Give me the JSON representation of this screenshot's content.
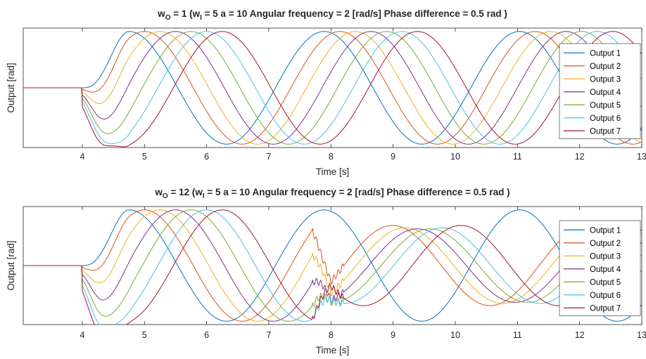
{
  "chart_data": [
    {
      "type": "line",
      "title_parts": [
        "w",
        "O",
        " = 1   (w",
        "I",
        " = 5   a = 10   Angular frequency = 2 [rad/s]   Phase difference = 0.5 rad )"
      ],
      "xlabel": "Time [s]",
      "ylabel": "Output [rad]",
      "xlim": [
        3.05,
        13
      ],
      "xticks": [
        4,
        5,
        6,
        7,
        8,
        9,
        10,
        11,
        12,
        13
      ],
      "ylim": [
        -1.06,
        1.06
      ],
      "grid": false,
      "legend_position": "right",
      "peak_values": {
        "Output 1": [
          0.97,
          1.0,
          1.0
        ],
        "Output 7": [
          0.97,
          1.0,
          1.0
        ]
      },
      "dip_values": {
        "Output 1": [
          -1.0,
          -1.0
        ],
        "Output 7": [
          -0.75,
          -1.0,
          -1.0
        ]
      },
      "series": [
        {
          "name": "Output 1",
          "color": "#0072bd",
          "phase_rad": 0.0,
          "dip": 0.0
        },
        {
          "name": "Output 2",
          "color": "#d95319",
          "phase_rad": 0.5,
          "dip": 0.07
        },
        {
          "name": "Output 3",
          "color": "#edb120",
          "phase_rad": 1.0,
          "dip": 0.17
        },
        {
          "name": "Output 4",
          "color": "#7e2f8e",
          "phase_rad": 1.5,
          "dip": 0.29
        },
        {
          "name": "Output 5",
          "color": "#77ac30",
          "phase_rad": 2.0,
          "dip": 0.42
        },
        {
          "name": "Output 6",
          "color": "#4dbeee",
          "phase_rad": 2.5,
          "dip": 0.57
        },
        {
          "name": "Output 7",
          "color": "#a2142f",
          "phase_rad": 3.0,
          "dip": 0.75
        }
      ]
    },
    {
      "type": "line",
      "title_parts": [
        "w",
        "O",
        " = 12   (w",
        "I",
        " = 5   a = 10   Angular frequency = 2 [rad/s]   Phase difference = 0.5 rad )"
      ],
      "xlabel": "Time [s]",
      "ylabel": "Output [rad]",
      "xlim": [
        3.05,
        13
      ],
      "xticks": [
        4,
        5,
        6,
        7,
        8,
        9,
        10,
        11,
        12,
        13
      ],
      "ylim": [
        -1.06,
        1.06
      ],
      "grid": false,
      "legend_position": "right",
      "series": [
        {
          "name": "Output 1",
          "color": "#0072bd",
          "phase_rad": 0.0,
          "dip": 0.0
        },
        {
          "name": "Output 2",
          "color": "#d95319",
          "phase_rad": 0.5,
          "dip": 0.08
        },
        {
          "name": "Output 3",
          "color": "#edb120",
          "phase_rad": 1.0,
          "dip": 0.2
        },
        {
          "name": "Output 4",
          "color": "#7e2f8e",
          "phase_rad": 1.5,
          "dip": 0.36
        },
        {
          "name": "Output 5",
          "color": "#77ac30",
          "phase_rad": 2.0,
          "dip": 0.55
        },
        {
          "name": "Output 6",
          "color": "#4dbeee",
          "phase_rad": 2.5,
          "dip": 0.78
        },
        {
          "name": "Output 7",
          "color": "#a2142f",
          "phase_rad": 3.0,
          "dip": 1.0
        }
      ],
      "disturbance": {
        "transition_x": [
          7.7,
          8.0
        ],
        "reacquired_phase_rad_after_8s": [
          0.0,
          2.2,
          2.6,
          3.0,
          3.4,
          3.8,
          4.4
        ],
        "damped_amplitudes_after_8s": [
          1.0,
          0.72,
          0.68,
          0.66,
          0.66,
          0.68,
          0.72
        ]
      }
    }
  ]
}
